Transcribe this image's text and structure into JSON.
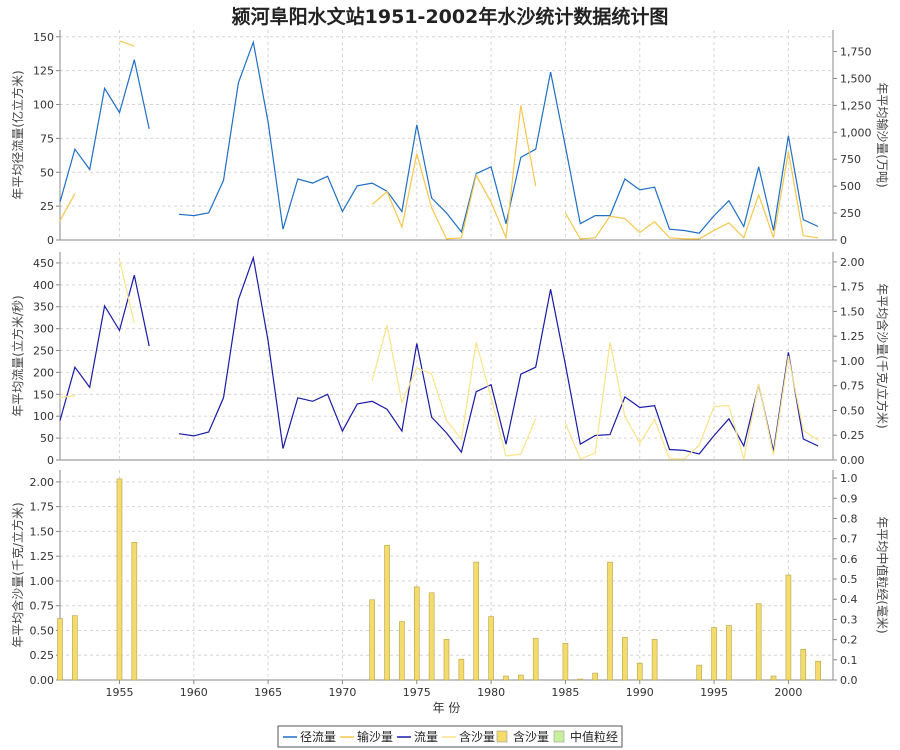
{
  "title": "颍河阜阳水文站1951-2002年水沙统计数据统计图",
  "x_axis": {
    "label": "年 份",
    "range": [
      1951,
      2003
    ],
    "ticks": [
      1955,
      1960,
      1965,
      1970,
      1975,
      1980,
      1985,
      1990,
      1995,
      2000
    ]
  },
  "legend": {
    "items": [
      {
        "label": "径流量",
        "color": "#1f6fc6",
        "kind": "line"
      },
      {
        "label": "输沙量",
        "color": "#f5c74b",
        "kind": "line"
      },
      {
        "label": "流量",
        "color": "#1a1aa8",
        "kind": "line"
      },
      {
        "label": "含沙量",
        "color": "#fbe38a",
        "kind": "line"
      },
      {
        "label": "含沙量",
        "color": "#f3dc6c",
        "kind": "bar"
      },
      {
        "label": "中值粒经",
        "color": "#c8ef9c",
        "kind": "bar"
      }
    ]
  },
  "chart_data": [
    {
      "type": "line",
      "left_axis": {
        "label": "年平均径流量(亿立方米)",
        "range": [
          0,
          155
        ],
        "ticks": [
          "0",
          "25",
          "50",
          "75",
          "100",
          "125",
          "150"
        ]
      },
      "right_axis": {
        "label": "年平均输沙量(万吨)",
        "range": [
          0,
          1950
        ],
        "ticks": [
          "0",
          "250",
          "500",
          "750",
          "1,000",
          "1,250",
          "1,500",
          "1,750"
        ]
      },
      "series": [
        {
          "name": "径流量",
          "axis": "left",
          "color": "#1f6fc6",
          "x": [
            1951,
            1952,
            1953,
            1954,
            1955,
            1956,
            1957,
            null,
            1959,
            1960,
            1961,
            1962,
            1963,
            1964,
            1965,
            1966,
            1967,
            1968,
            1969,
            1970,
            1971,
            1972,
            1973,
            1974,
            1975,
            1976,
            1977,
            1978,
            1979,
            1980,
            1981,
            1982,
            1983,
            1984,
            1985,
            1986,
            1987,
            1988,
            1989,
            1990,
            1991,
            1992,
            1993,
            1994,
            1995,
            1996,
            1997,
            1998,
            1999,
            2000,
            2001,
            2002
          ],
          "y": [
            28,
            67,
            52,
            112,
            94,
            133,
            82,
            null,
            19,
            18,
            20,
            44,
            116,
            146,
            87,
            8,
            45,
            42,
            47,
            21,
            40,
            42,
            36,
            21,
            85,
            31,
            20,
            6,
            49,
            54,
            12,
            61,
            67,
            124,
            69,
            12,
            18,
            18,
            45,
            37,
            39,
            8,
            7,
            5,
            18,
            29,
            10,
            54,
            7,
            77,
            15,
            10
          ]
        },
        {
          "name": "输沙量",
          "axis": "right",
          "color": "#f5c74b",
          "x": [
            1951,
            1952,
            null,
            1955,
            1956,
            null,
            1972,
            1973,
            1974,
            1975,
            1976,
            1977,
            1978,
            1979,
            1980,
            1981,
            1982,
            1983,
            null,
            1985,
            1986,
            1987,
            1988,
            1989,
            1990,
            1991,
            1992,
            1993,
            1994,
            1995,
            1996,
            1997,
            1998,
            1999,
            2000,
            2001,
            2002
          ],
          "y": [
            180,
            430,
            null,
            1850,
            1800,
            null,
            330,
            450,
            120,
            800,
            300,
            10,
            20,
            600,
            350,
            20,
            1250,
            500,
            null,
            250,
            10,
            20,
            220,
            200,
            70,
            170,
            20,
            10,
            10,
            90,
            160,
            20,
            420,
            20,
            820,
            40,
            20
          ]
        }
      ]
    },
    {
      "type": "line",
      "left_axis": {
        "label": "年平均流量(立方米/秒)",
        "range": [
          0,
          475
        ],
        "ticks": [
          "0",
          "50",
          "100",
          "150",
          "200",
          "250",
          "300",
          "350",
          "400",
          "450"
        ]
      },
      "right_axis": {
        "label": "年平均含沙量(千克/立方米)",
        "range": [
          0,
          2.1
        ],
        "ticks": [
          "0.00",
          "0.25",
          "0.50",
          "0.75",
          "1.00",
          "1.25",
          "1.50",
          "1.75",
          "2.00"
        ]
      },
      "series": [
        {
          "name": "流量",
          "axis": "left",
          "color": "#1a1aa8",
          "x": [
            1951,
            1952,
            1953,
            1954,
            1955,
            1956,
            1957,
            null,
            1959,
            1960,
            1961,
            1962,
            1963,
            1964,
            1965,
            1966,
            1967,
            1968,
            1969,
            1970,
            1971,
            1972,
            1973,
            1974,
            1975,
            1976,
            1977,
            1978,
            1979,
            1980,
            1981,
            1982,
            1983,
            1984,
            1985,
            1986,
            1987,
            1988,
            1989,
            1990,
            1991,
            1992,
            1993,
            1994,
            1995,
            1996,
            1997,
            1998,
            1999,
            2000,
            2001,
            2002
          ],
          "y": [
            90,
            212,
            166,
            352,
            296,
            422,
            260,
            null,
            60,
            55,
            64,
            142,
            366,
            462,
            272,
            26,
            142,
            134,
            150,
            66,
            128,
            134,
            116,
            66,
            266,
            98,
            62,
            18,
            156,
            172,
            36,
            196,
            212,
            390,
            218,
            36,
            56,
            58,
            144,
            120,
            124,
            24,
            22,
            14,
            56,
            94,
            32,
            172,
            20,
            246,
            48,
            32
          ]
        },
        {
          "name": "含沙量",
          "axis": "right",
          "color": "#fbe38a",
          "x": [
            1951,
            1952,
            null,
            1955,
            1956,
            null,
            1972,
            1973,
            1974,
            1975,
            1976,
            1977,
            1978,
            1979,
            1980,
            1981,
            1982,
            1983,
            null,
            1985,
            1986,
            1987,
            1988,
            1989,
            1990,
            1991,
            1992,
            1993,
            1994,
            1995,
            1996,
            1997,
            1998,
            1999,
            2000,
            2001,
            2002
          ],
          "y": [
            0.63,
            0.65,
            null,
            2.02,
            1.38,
            null,
            0.8,
            1.36,
            0.58,
            0.93,
            0.87,
            0.4,
            0.21,
            1.19,
            0.63,
            0.04,
            0.06,
            0.42,
            null,
            0.37,
            0.01,
            0.07,
            1.19,
            0.44,
            0.17,
            0.41,
            0.01,
            0.01,
            0.15,
            0.54,
            0.55,
            0.01,
            0.77,
            0.05,
            1.05,
            0.3,
            0.2
          ]
        }
      ]
    },
    {
      "type": "bar",
      "left_axis": {
        "label": "年平均含沙量(千克/立方米)",
        "range": [
          0,
          2.12
        ],
        "ticks": [
          "0.00",
          "0.25",
          "0.50",
          "0.75",
          "1.00",
          "1.25",
          "1.50",
          "1.75",
          "2.00"
        ]
      },
      "right_axis": {
        "label": "年平均中值粒经(毫米)",
        "range": [
          0,
          1.04
        ],
        "ticks": [
          "0.0",
          "0.1",
          "0.2",
          "0.3",
          "0.4",
          "0.5",
          "0.6",
          "0.7",
          "0.8",
          "0.9",
          "1.0"
        ]
      },
      "series": [
        {
          "name": "含沙量",
          "axis": "left",
          "color": "#f3dc6c",
          "x": [
            1951,
            1952,
            1955,
            1956,
            1972,
            1973,
            1974,
            1975,
            1976,
            1977,
            1978,
            1979,
            1980,
            1981,
            1982,
            1983,
            1985,
            1986,
            1987,
            1988,
            1989,
            1990,
            1991,
            1994,
            1995,
            1996,
            1998,
            1999,
            2000,
            2001,
            2002
          ],
          "y": [
            0.62,
            0.65,
            2.03,
            1.39,
            0.81,
            1.36,
            0.59,
            0.94,
            0.88,
            0.41,
            0.21,
            1.19,
            0.64,
            0.04,
            0.05,
            0.42,
            0.37,
            0.01,
            0.07,
            1.19,
            0.43,
            0.17,
            0.41,
            0.15,
            0.53,
            0.55,
            0.77,
            0.04,
            1.06,
            0.31,
            0.19
          ]
        }
      ]
    }
  ]
}
